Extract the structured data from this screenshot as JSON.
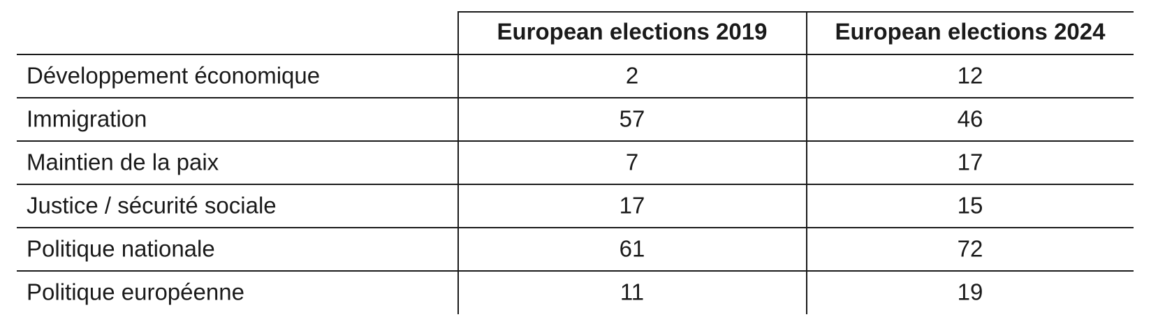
{
  "table": {
    "columns": [
      "European elections 2019",
      "European elections 2024"
    ],
    "rows": [
      [
        "Développement économique",
        2,
        12
      ],
      [
        "Immigration",
        57,
        46
      ],
      [
        "Maintien de la paix",
        7,
        17
      ],
      [
        "Justice / sécurité sociale",
        17,
        15
      ],
      [
        "Politique nationale",
        61,
        72
      ],
      [
        "Politique européenne",
        11,
        19
      ]
    ]
  }
}
